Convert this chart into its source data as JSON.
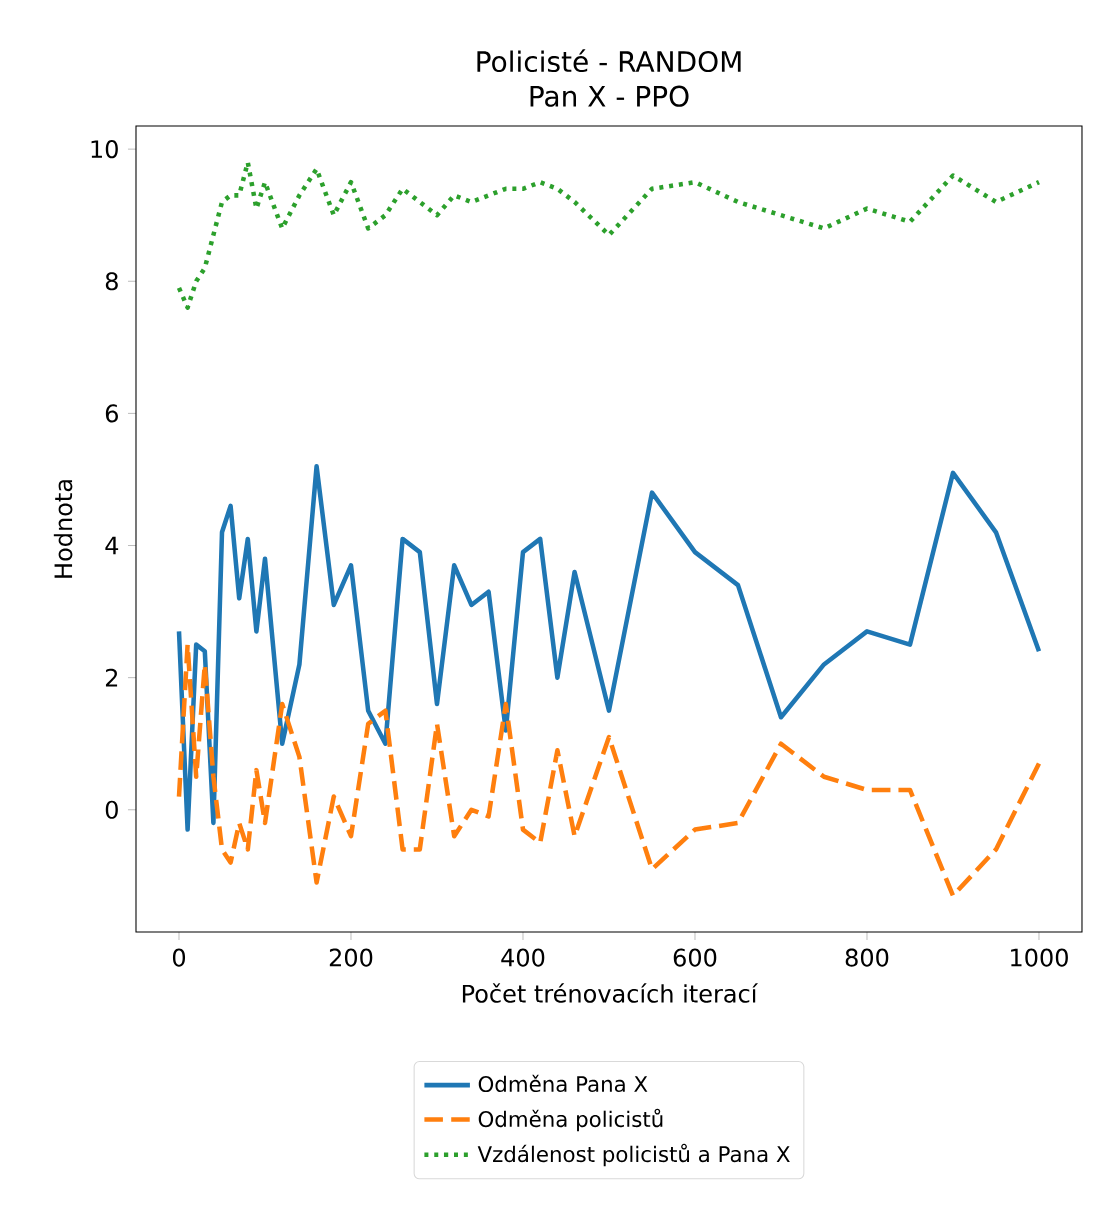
{
  "chart_data": {
    "type": "line",
    "title": "Policisté - RANDOM",
    "subtitle": "Pan X - PPO",
    "xlabel": "Počet trénovacích iterací",
    "ylabel": "Hodnota",
    "x": [
      0,
      10,
      20,
      30,
      40,
      50,
      60,
      70,
      80,
      90,
      100,
      120,
      140,
      160,
      180,
      200,
      220,
      240,
      260,
      280,
      300,
      320,
      340,
      360,
      380,
      400,
      420,
      440,
      460,
      500,
      550,
      600,
      650,
      700,
      750,
      800,
      850,
      900,
      950,
      1000
    ],
    "series": [
      {
        "name": "Odměna Pana X",
        "color": "#1f77b4",
        "line_style": "solid",
        "values": [
          2.7,
          -0.3,
          2.5,
          2.4,
          -0.2,
          4.2,
          4.6,
          3.2,
          4.1,
          2.7,
          3.8,
          1.0,
          2.2,
          5.2,
          3.1,
          3.7,
          1.5,
          1.0,
          4.1,
          3.9,
          1.6,
          3.7,
          3.1,
          3.3,
          1.2,
          3.9,
          4.1,
          2.0,
          3.6,
          1.5,
          4.8,
          3.9,
          3.4,
          1.4,
          2.2,
          2.7,
          2.5,
          5.1,
          4.2,
          2.4
        ]
      },
      {
        "name": "Odměna policistů",
        "color": "#ff7f0e",
        "line_style": "dashed",
        "values": [
          0.2,
          2.5,
          0.5,
          2.2,
          0.5,
          -0.6,
          -0.8,
          -0.2,
          -0.6,
          0.6,
          -0.2,
          1.6,
          0.8,
          -1.1,
          0.2,
          -0.4,
          1.3,
          1.5,
          -0.6,
          -0.6,
          1.3,
          -0.4,
          0.0,
          -0.1,
          1.6,
          -0.3,
          -0.5,
          0.9,
          -0.4,
          1.1,
          -0.9,
          -0.3,
          -0.2,
          1.0,
          0.5,
          0.3,
          0.3,
          -1.3,
          -0.6,
          0.7
        ]
      },
      {
        "name": "Vzdálenost policistů a Pana X",
        "color": "#2ca02c",
        "line_style": "dotted",
        "values": [
          7.9,
          7.6,
          8.0,
          8.2,
          8.7,
          9.2,
          9.3,
          9.3,
          9.8,
          9.1,
          9.5,
          8.8,
          9.3,
          9.7,
          9.0,
          9.5,
          8.8,
          9.0,
          9.4,
          9.2,
          9.0,
          9.3,
          9.2,
          9.3,
          9.4,
          9.4,
          9.5,
          9.4,
          9.2,
          8.7,
          9.4,
          9.5,
          9.2,
          9.0,
          8.8,
          9.1,
          8.9,
          9.6,
          9.2,
          9.5
        ]
      }
    ],
    "xlim": [
      -50,
      1050
    ],
    "ylim": [
      -1.85,
      10.35
    ],
    "xticks": [
      0,
      200,
      400,
      600,
      800,
      1000
    ],
    "yticks": [
      0,
      2,
      4,
      6,
      8,
      10
    ],
    "legend": "bottom",
    "marker": "none"
  }
}
